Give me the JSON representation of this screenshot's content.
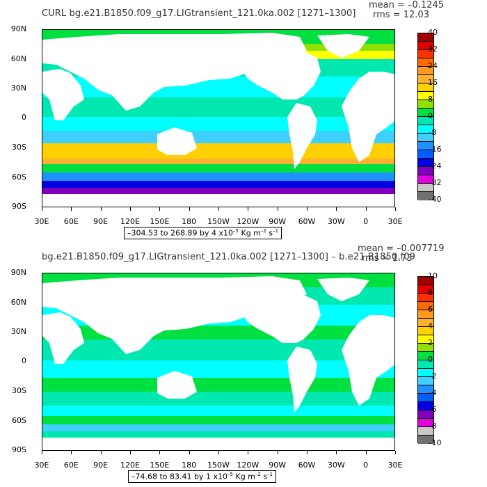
{
  "colors": [
    "#a00000",
    "#e00000",
    "#ff3000",
    "#ff6a00",
    "#ff9a20",
    "#ffb030",
    "#ffd000",
    "#ffff00",
    "#8ee000",
    "#00e040",
    "#00e8b0",
    "#00ffff",
    "#40d0ff",
    "#1e90ff",
    "#0060ff",
    "#0000e0",
    "#8000c0",
    "#e000e0",
    "#c8c8c8",
    "#707070"
  ],
  "colormap_stops": [
    "#ffffff"
  ],
  "panels": [
    {
      "title": "CURL  bg.e21.B1850.f09_g17.LIGtransient_121.0ka.002  [1271–1300]",
      "mean_label": "mean = –0.1245",
      "rms_label": "rms = 12.03",
      "range_text": "–304.53 to 268.89 by 4 x10",
      "range_units": " Kg m",
      "range_sec": " s",
      "colorbar_labels": [
        "40",
        "32",
        "24",
        "16",
        "8",
        "0",
        "–8",
        "–16",
        "–24",
        "–32",
        "–40"
      ]
    },
    {
      "title": "bg.e21.B1850.f09_g17.LIGtransient_121.0ka.002  [1271–1300] – b.e21.B1850.f09",
      "mean_label": "mean = –0.007719",
      "rms_label": "rms = 1.73",
      "range_text": "–74.68 to 83.41 by 1 x10",
      "range_units": " Kg m",
      "range_sec": " s",
      "colorbar_labels": [
        "10",
        "8",
        "6",
        "4",
        "2",
        "0",
        "–2",
        "–4",
        "–6",
        "–8",
        "–10"
      ]
    }
  ],
  "axes": {
    "lat_labels": [
      "90N",
      "60N",
      "30N",
      "0",
      "30S",
      "60S",
      "90S"
    ],
    "lon_labels": [
      "30E",
      "60E",
      "90E",
      "120E",
      "150E",
      "180",
      "150W",
      "120W",
      "90W",
      "60W",
      "30W",
      "0",
      "30E"
    ]
  },
  "exp_minus5": "–5",
  "exp_minus2": "–2",
  "exp_minus1": "–1"
}
